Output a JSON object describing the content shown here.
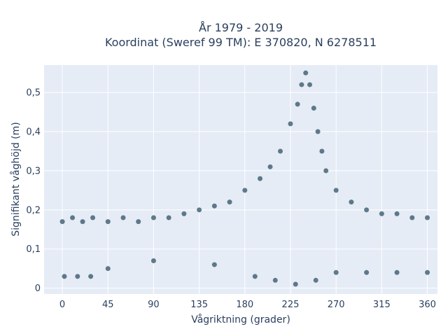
{
  "chart_data": {
    "type": "scatter",
    "title_lines": [
      "År 1979 - 2019",
      "Koordinat (Sweref 99 TM): E 370820, N 6278511"
    ],
    "xlabel": "Vågriktning (grader)",
    "ylabel": "Signifikant våghöjd (m)",
    "xlim": [
      -18,
      370
    ],
    "ylim": [
      -0.015,
      0.57
    ],
    "xticks": [
      0,
      45,
      90,
      135,
      180,
      225,
      270,
      315,
      360
    ],
    "xtick_labels": [
      "0",
      "45",
      "90",
      "135",
      "180",
      "225",
      "270",
      "315",
      "360"
    ],
    "yticks": [
      0,
      0.1,
      0.2,
      0.3,
      0.4,
      0.5
    ],
    "ytick_labels": [
      "0",
      "0,1",
      "0,2",
      "0,3",
      "0,4",
      "0,5"
    ],
    "grid": true,
    "colors": {
      "marker": "#2f5166",
      "plot_bg": "#e5ecf6",
      "grid": "#ffffff",
      "text": "#2a3f5f"
    },
    "x": [
      0,
      10,
      20,
      30,
      45,
      60,
      75,
      90,
      105,
      120,
      135,
      150,
      165,
      180,
      195,
      205,
      215,
      225,
      232,
      236,
      240,
      244,
      248,
      252,
      256,
      260,
      270,
      285,
      300,
      315,
      330,
      345,
      360,
      2,
      15,
      28,
      45,
      90,
      150,
      190,
      210,
      230,
      250,
      270,
      300,
      330,
      360
    ],
    "y": [
      0.17,
      0.18,
      0.17,
      0.18,
      0.17,
      0.18,
      0.17,
      0.18,
      0.18,
      0.19,
      0.2,
      0.21,
      0.22,
      0.25,
      0.28,
      0.31,
      0.35,
      0.42,
      0.47,
      0.52,
      0.55,
      0.52,
      0.46,
      0.4,
      0.35,
      0.3,
      0.25,
      0.22,
      0.2,
      0.19,
      0.19,
      0.18,
      0.18,
      0.03,
      0.03,
      0.03,
      0.05,
      0.07,
      0.06,
      0.03,
      0.02,
      0.01,
      0.02,
      0.04,
      0.04,
      0.04,
      0.04
    ]
  }
}
